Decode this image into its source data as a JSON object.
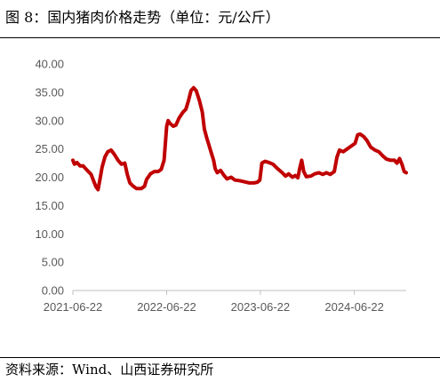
{
  "figure": {
    "title": "图 8：国内猪肉价格走势（单位：元/公斤）",
    "source": "资料来源：Wind、山西证券研究所"
  },
  "colors": {
    "line": "#c00000",
    "axis": "#bfbfbf",
    "text": "#595959"
  },
  "chart_data": {
    "type": "line",
    "title": "",
    "xlabel": "",
    "ylabel": "",
    "ylim": [
      0,
      40
    ],
    "yticks": [
      "0.00",
      "5.00",
      "10.00",
      "15.00",
      "20.00",
      "25.00",
      "30.00",
      "35.00",
      "40.00"
    ],
    "xticks": [
      {
        "x": "2021-06-22",
        "label": "2021-06-22"
      },
      {
        "x": "2022-06-22",
        "label": "2022-06-22"
      },
      {
        "x": "2023-06-22",
        "label": "2023-06-22"
      },
      {
        "x": "2024-06-22",
        "label": "2024-06-22"
      }
    ],
    "x_range": [
      "2021-06-22",
      "2025-01-10"
    ],
    "grid": false,
    "legend": "none",
    "series": [
      {
        "name": "",
        "points": [
          [
            "2021-06-22",
            23.0
          ],
          [
            "2021-06-28",
            22.3
          ],
          [
            "2021-07-08",
            22.6
          ],
          [
            "2021-07-20",
            22.0
          ],
          [
            "2021-08-01",
            22.0
          ],
          [
            "2021-08-15",
            21.3
          ],
          [
            "2021-09-01",
            20.5
          ],
          [
            "2021-09-12",
            19.2
          ],
          [
            "2021-09-20",
            18.3
          ],
          [
            "2021-09-28",
            17.8
          ],
          [
            "2021-10-05",
            19.5
          ],
          [
            "2021-10-14",
            21.8
          ],
          [
            "2021-10-25",
            23.6
          ],
          [
            "2021-11-05",
            24.5
          ],
          [
            "2021-11-18",
            24.8
          ],
          [
            "2021-12-01",
            24.0
          ],
          [
            "2021-12-15",
            23.0
          ],
          [
            "2021-12-28",
            22.3
          ],
          [
            "2022-01-10",
            22.5
          ],
          [
            "2022-01-20",
            20.5
          ],
          [
            "2022-01-30",
            19.0
          ],
          [
            "2022-02-10",
            18.5
          ],
          [
            "2022-02-25",
            18.0
          ],
          [
            "2022-03-15",
            18.0
          ],
          [
            "2022-03-28",
            18.4
          ],
          [
            "2022-04-05",
            19.6
          ],
          [
            "2022-04-20",
            20.6
          ],
          [
            "2022-05-05",
            21.0
          ],
          [
            "2022-05-20",
            21.0
          ],
          [
            "2022-06-01",
            21.4
          ],
          [
            "2022-06-12",
            23.0
          ],
          [
            "2022-06-22",
            29.0
          ],
          [
            "2022-06-28",
            30.0
          ],
          [
            "2022-07-05",
            29.5
          ],
          [
            "2022-07-18",
            29.0
          ],
          [
            "2022-07-28",
            29.2
          ],
          [
            "2022-08-10",
            30.5
          ],
          [
            "2022-08-25",
            31.5
          ],
          [
            "2022-09-05",
            32.0
          ],
          [
            "2022-09-15",
            33.5
          ],
          [
            "2022-09-25",
            35.3
          ],
          [
            "2022-10-05",
            35.8
          ],
          [
            "2022-10-15",
            35.3
          ],
          [
            "2022-10-28",
            33.5
          ],
          [
            "2022-11-08",
            31.5
          ],
          [
            "2022-11-16",
            28.5
          ],
          [
            "2022-11-25",
            27.0
          ],
          [
            "2022-12-05",
            25.5
          ],
          [
            "2022-12-15",
            24.0
          ],
          [
            "2022-12-22",
            23.0
          ],
          [
            "2022-12-28",
            21.5
          ],
          [
            "2023-01-05",
            20.8
          ],
          [
            "2023-01-18",
            21.2
          ],
          [
            "2023-01-30",
            20.4
          ],
          [
            "2023-02-12",
            19.7
          ],
          [
            "2023-02-28",
            20.0
          ],
          [
            "2023-03-15",
            19.5
          ],
          [
            "2023-04-01",
            19.4
          ],
          [
            "2023-04-20",
            19.2
          ],
          [
            "2023-05-10",
            19.0
          ],
          [
            "2023-05-28",
            19.0
          ],
          [
            "2023-06-10",
            19.1
          ],
          [
            "2023-06-20",
            19.5
          ],
          [
            "2023-06-28",
            22.5
          ],
          [
            "2023-07-10",
            22.8
          ],
          [
            "2023-07-25",
            22.6
          ],
          [
            "2023-08-10",
            22.3
          ],
          [
            "2023-08-28",
            21.5
          ],
          [
            "2023-09-15",
            20.8
          ],
          [
            "2023-09-28",
            20.2
          ],
          [
            "2023-10-10",
            20.6
          ],
          [
            "2023-10-25",
            20.0
          ],
          [
            "2023-11-05",
            20.3
          ],
          [
            "2023-11-15",
            19.9
          ],
          [
            "2023-11-22",
            21.5
          ],
          [
            "2023-11-30",
            23.0
          ],
          [
            "2023-12-08",
            21.0
          ],
          [
            "2023-12-18",
            20.1
          ],
          [
            "2024-01-05",
            20.2
          ],
          [
            "2024-01-20",
            20.6
          ],
          [
            "2024-02-05",
            20.8
          ],
          [
            "2024-02-20",
            20.5
          ],
          [
            "2024-03-05",
            20.8
          ],
          [
            "2024-03-20",
            20.5
          ],
          [
            "2024-04-05",
            21.0
          ],
          [
            "2024-04-15",
            23.5
          ],
          [
            "2024-04-25",
            24.8
          ],
          [
            "2024-05-10",
            24.5
          ],
          [
            "2024-05-25",
            25.0
          ],
          [
            "2024-06-10",
            25.5
          ],
          [
            "2024-06-25",
            26.0
          ],
          [
            "2024-07-05",
            27.5
          ],
          [
            "2024-07-15",
            27.6
          ],
          [
            "2024-07-28",
            27.2
          ],
          [
            "2024-08-10",
            26.5
          ],
          [
            "2024-08-25",
            25.3
          ],
          [
            "2024-09-10",
            24.8
          ],
          [
            "2024-09-25",
            24.5
          ],
          [
            "2024-10-10",
            23.8
          ],
          [
            "2024-10-25",
            23.2
          ],
          [
            "2024-11-10",
            23.0
          ],
          [
            "2024-11-25",
            23.0
          ],
          [
            "2024-12-05",
            22.5
          ],
          [
            "2024-12-15",
            23.3
          ],
          [
            "2024-12-25",
            22.2
          ],
          [
            "2025-01-02",
            21.0
          ],
          [
            "2025-01-10",
            20.8
          ]
        ]
      }
    ]
  }
}
